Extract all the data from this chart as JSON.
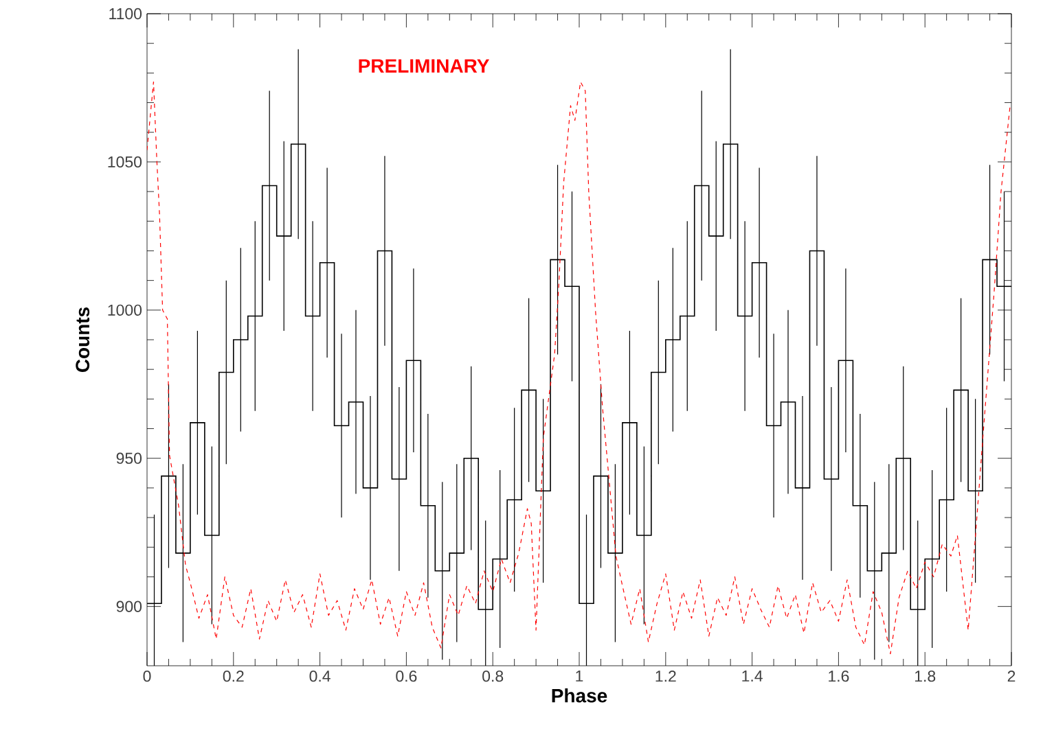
{
  "chart_data": {
    "type": "step",
    "xlabel": "Phase",
    "ylabel": "Counts",
    "annotations": [
      "PRELIMINARY"
    ],
    "xlim": [
      0,
      2
    ],
    "ylim": [
      880,
      1100
    ],
    "xticks": [
      0,
      0.2,
      0.4,
      0.6,
      0.8,
      1,
      1.2,
      1.4,
      1.6,
      1.8,
      2
    ],
    "yticks": [
      900,
      950,
      1000,
      1050,
      1100
    ],
    "series": [
      {
        "color": "#000000",
        "x": [
          0.0167,
          0.05,
          0.0833,
          0.1167,
          0.15,
          0.1833,
          0.2167,
          0.25,
          0.2833,
          0.3167,
          0.35,
          0.3833,
          0.4167,
          0.45,
          0.4833,
          0.5167,
          0.55,
          0.5833,
          0.6167,
          0.65,
          0.6833,
          0.7167,
          0.75,
          0.7833,
          0.8167,
          0.85,
          0.8833,
          0.9167,
          0.95,
          0.9833,
          1.0167,
          1.05,
          1.0833,
          1.1167,
          1.15,
          1.1833,
          1.2167,
          1.25,
          1.2833,
          1.3167,
          1.35,
          1.3833,
          1.4167,
          1.45,
          1.4833,
          1.5167,
          1.55,
          1.5833,
          1.6167,
          1.65,
          1.6833,
          1.7167,
          1.75,
          1.7833,
          1.8167,
          1.85,
          1.8833,
          1.9167,
          1.95,
          1.9833
        ],
        "values": [
          901,
          944,
          918,
          962,
          924,
          979,
          990,
          998,
          1042,
          1025,
          1056,
          998,
          1016,
          961,
          969,
          940,
          1020,
          943,
          983,
          934,
          912,
          918,
          950,
          899,
          916,
          936,
          973,
          939,
          1017,
          1008,
          901,
          944,
          918,
          962,
          924,
          979,
          990,
          998,
          1042,
          1025,
          1056,
          998,
          1016,
          961,
          969,
          940,
          1020,
          943,
          983,
          934,
          912,
          918,
          950,
          899,
          916,
          936,
          973,
          939,
          1017,
          1008
        ],
        "errors": [
          30,
          31,
          30,
          31,
          30,
          31,
          31,
          32,
          32,
          32,
          32,
          32,
          32,
          31,
          31,
          31,
          32,
          31,
          31,
          31,
          30,
          30,
          31,
          30,
          30,
          31,
          31,
          31,
          32,
          32,
          30,
          31,
          30,
          31,
          30,
          31,
          31,
          32,
          32,
          32,
          32,
          32,
          32,
          31,
          31,
          31,
          32,
          31,
          31,
          31,
          30,
          30,
          31,
          30,
          30,
          31,
          31,
          31,
          32,
          32
        ]
      },
      {
        "type": "line",
        "color": "#ff0000",
        "line_style": "dashed",
        "x": [
          0,
          0.015,
          0.0225,
          0.029,
          0.036,
          0.047,
          0.052,
          0.073,
          0.089,
          0.1,
          0.12,
          0.14,
          0.16,
          0.18,
          0.2,
          0.22,
          0.24,
          0.26,
          0.28,
          0.3,
          0.32,
          0.34,
          0.36,
          0.38,
          0.4,
          0.42,
          0.44,
          0.46,
          0.48,
          0.5,
          0.52,
          0.54,
          0.56,
          0.58,
          0.6,
          0.62,
          0.64,
          0.66,
          0.68,
          0.7,
          0.72,
          0.74,
          0.76,
          0.78,
          0.8,
          0.82,
          0.84,
          0.86,
          0.88,
          0.889,
          0.9,
          0.917,
          0.943,
          0.953,
          0.964,
          0.98,
          0.99,
          1.003,
          1.014,
          1.022,
          1.038,
          1.054,
          1.064,
          1.085,
          1.1,
          1.12,
          1.14,
          1.16,
          1.18,
          1.2,
          1.22,
          1.24,
          1.26,
          1.28,
          1.3,
          1.32,
          1.34,
          1.36,
          1.38,
          1.4,
          1.42,
          1.44,
          1.46,
          1.48,
          1.5,
          1.52,
          1.54,
          1.56,
          1.58,
          1.6,
          1.62,
          1.64,
          1.66,
          1.68,
          1.7,
          1.72,
          1.74,
          1.76,
          1.78,
          1.8,
          1.82,
          1.84,
          1.86,
          1.875,
          1.9,
          1.918,
          1.934,
          1.96,
          1.976,
          1.997
        ],
        "values": [
          1054,
          1077,
          1051,
          1032,
          1000,
          997,
          951,
          934,
          914,
          908,
          896,
          904,
          889,
          910,
          897,
          893,
          906,
          889,
          902,
          895,
          909,
          898,
          904,
          893,
          911,
          897,
          902,
          892,
          906,
          899,
          909,
          894,
          903,
          890,
          905,
          897,
          908,
          893,
          886,
          904,
          897,
          907,
          901,
          912,
          905,
          916,
          908,
          918,
          933,
          928,
          892,
          957,
          985,
          1009,
          1043,
          1069,
          1064,
          1077,
          1074,
          1040,
          999,
          967,
          951,
          917,
          907,
          894,
          906,
          888,
          901,
          911,
          892,
          905,
          896,
          909,
          890,
          903,
          897,
          910,
          894,
          906,
          899,
          893,
          907,
          896,
          904,
          891,
          908,
          898,
          902,
          895,
          909,
          893,
          887,
          905,
          898,
          884,
          903,
          912,
          906,
          915,
          910,
          921,
          917,
          924,
          892,
          926,
          957,
          1006,
          1040,
          1069
        ]
      }
    ]
  }
}
